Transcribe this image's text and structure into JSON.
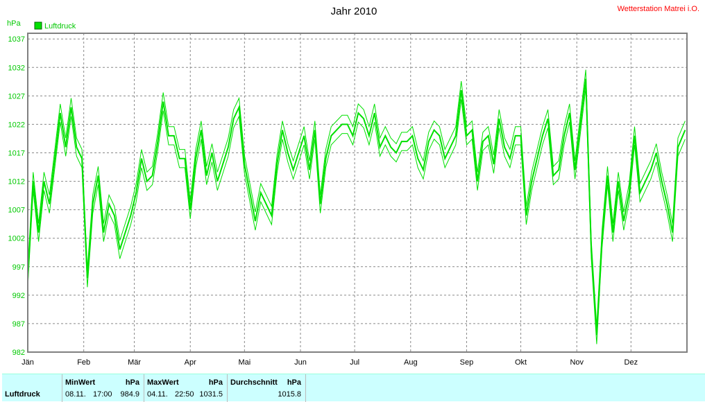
{
  "chart_data": {
    "type": "line",
    "title": "Jahr 2010",
    "station": "Wetterstation Matrei i.O.",
    "ylabel": "hPa",
    "legend": "Luftdruck",
    "series_color": "#00e000",
    "ylim": [
      982,
      1038
    ],
    "yticks": [
      1037,
      1032,
      1027,
      1022,
      1017,
      1012,
      1007,
      1002,
      997,
      992,
      987,
      982
    ],
    "months": [
      "Jän",
      "Feb",
      "Mär",
      "Apr",
      "Mai",
      "Jun",
      "Jul",
      "Aug",
      "Sep",
      "Okt",
      "Nov",
      "Dez"
    ],
    "days": 365,
    "grid": true,
    "series": [
      {
        "name": "Luftdruck",
        "x_unit": "day of year",
        "points": [
          [
            0,
            995
          ],
          [
            3,
            1012
          ],
          [
            6,
            1003
          ],
          [
            9,
            1012
          ],
          [
            12,
            1008
          ],
          [
            15,
            1016
          ],
          [
            18,
            1024
          ],
          [
            21,
            1018
          ],
          [
            24,
            1025
          ],
          [
            27,
            1018
          ],
          [
            30,
            1016
          ],
          [
            33,
            995
          ],
          [
            36,
            1008
          ],
          [
            39,
            1013
          ],
          [
            42,
            1003
          ],
          [
            45,
            1008
          ],
          [
            48,
            1006
          ],
          [
            51,
            1000
          ],
          [
            54,
            1003
          ],
          [
            57,
            1006
          ],
          [
            60,
            1010
          ],
          [
            63,
            1016
          ],
          [
            66,
            1012
          ],
          [
            69,
            1013
          ],
          [
            72,
            1019
          ],
          [
            75,
            1026
          ],
          [
            78,
            1020
          ],
          [
            81,
            1020
          ],
          [
            84,
            1016
          ],
          [
            87,
            1016
          ],
          [
            90,
            1007
          ],
          [
            93,
            1016
          ],
          [
            96,
            1021
          ],
          [
            99,
            1013
          ],
          [
            102,
            1017
          ],
          [
            105,
            1012
          ],
          [
            108,
            1015
          ],
          [
            111,
            1018
          ],
          [
            114,
            1023
          ],
          [
            117,
            1025
          ],
          [
            120,
            1015
          ],
          [
            123,
            1010
          ],
          [
            126,
            1005
          ],
          [
            129,
            1010
          ],
          [
            132,
            1008
          ],
          [
            135,
            1006
          ],
          [
            138,
            1015
          ],
          [
            141,
            1021
          ],
          [
            144,
            1017
          ],
          [
            147,
            1014
          ],
          [
            150,
            1017
          ],
          [
            153,
            1020
          ],
          [
            156,
            1014
          ],
          [
            159,
            1021
          ],
          [
            162,
            1008
          ],
          [
            165,
            1016
          ],
          [
            168,
            1020
          ],
          [
            171,
            1021
          ],
          [
            174,
            1022
          ],
          [
            177,
            1022
          ],
          [
            180,
            1020
          ],
          [
            183,
            1024
          ],
          [
            186,
            1023
          ],
          [
            189,
            1020
          ],
          [
            192,
            1024
          ],
          [
            195,
            1018
          ],
          [
            198,
            1020
          ],
          [
            201,
            1018
          ],
          [
            204,
            1017
          ],
          [
            207,
            1019
          ],
          [
            210,
            1019
          ],
          [
            213,
            1020
          ],
          [
            216,
            1016
          ],
          [
            219,
            1014
          ],
          [
            222,
            1019
          ],
          [
            225,
            1021
          ],
          [
            228,
            1020
          ],
          [
            231,
            1016
          ],
          [
            234,
            1018
          ],
          [
            237,
            1020
          ],
          [
            240,
            1028
          ],
          [
            243,
            1020
          ],
          [
            246,
            1021
          ],
          [
            249,
            1012
          ],
          [
            252,
            1019
          ],
          [
            255,
            1020
          ],
          [
            258,
            1015
          ],
          [
            261,
            1023
          ],
          [
            264,
            1018
          ],
          [
            267,
            1016
          ],
          [
            270,
            1020
          ],
          [
            273,
            1020
          ],
          [
            276,
            1006
          ],
          [
            279,
            1012
          ],
          [
            282,
            1016
          ],
          [
            285,
            1020
          ],
          [
            288,
            1023
          ],
          [
            291,
            1013
          ],
          [
            294,
            1014
          ],
          [
            297,
            1020
          ],
          [
            300,
            1024
          ],
          [
            303,
            1014
          ],
          [
            306,
            1022
          ],
          [
            309,
            1030
          ],
          [
            312,
            1000
          ],
          [
            315,
            985
          ],
          [
            318,
            1002
          ],
          [
            321,
            1013
          ],
          [
            324,
            1003
          ],
          [
            327,
            1012
          ],
          [
            330,
            1005
          ],
          [
            333,
            1010
          ],
          [
            336,
            1020
          ],
          [
            339,
            1010
          ],
          [
            342,
            1012
          ],
          [
            345,
            1014
          ],
          [
            348,
            1017
          ],
          [
            351,
            1012
          ],
          [
            354,
            1008
          ],
          [
            357,
            1003
          ],
          [
            360,
            1018
          ],
          [
            364,
            1021
          ]
        ]
      }
    ],
    "stats": {
      "row_label": "Luftdruck",
      "min": {
        "header": "MinWert",
        "unit": "hPa",
        "date": "08.11.",
        "time": "17:00",
        "value": "984.9"
      },
      "max": {
        "header": "MaxWert",
        "unit": "hPa",
        "date": "04.11.",
        "time": "22:50",
        "value": "1031.5"
      },
      "avg": {
        "header": "Durchschnitt",
        "unit": "hPa",
        "value": "1015.8"
      }
    }
  }
}
